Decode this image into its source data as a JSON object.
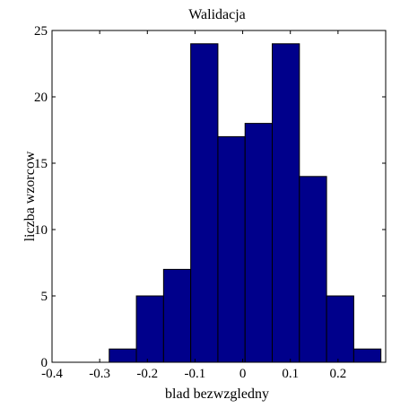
{
  "chart_data": {
    "type": "bar",
    "title": "Walidacja",
    "xlabel": "blad bezwzgledny",
    "ylabel": "liczba wzorcow",
    "xlim": [
      -0.4,
      0.3
    ],
    "ylim": [
      0,
      25
    ],
    "x_ticks": [
      "-0.4",
      "-0.3",
      "-0.2",
      "-0.1",
      "0",
      "0.1",
      "0.2"
    ],
    "y_ticks": [
      "0",
      "5",
      "10",
      "15",
      "20",
      "25"
    ],
    "bin_edges": [
      -0.28,
      -0.223,
      -0.166,
      -0.109,
      -0.052,
      0.005,
      0.062,
      0.119,
      0.176,
      0.233,
      0.29
    ],
    "values": [
      1,
      5,
      7,
      24,
      17,
      18,
      24,
      14,
      5,
      1
    ],
    "bar_color": "#00008b",
    "bar_edge_color": "#000000",
    "grid": false,
    "box": true
  }
}
